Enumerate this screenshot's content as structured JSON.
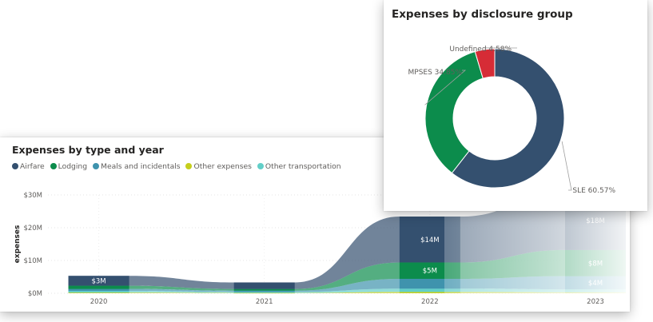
{
  "area_chart": {
    "title": "Expenses by type and year",
    "ylabel": "expenses",
    "legend": [
      {
        "label": "Airfare",
        "color": "#34506f"
      },
      {
        "label": "Lodging",
        "color": "#0c8c4c"
      },
      {
        "label": "Meals and incidentals",
        "color": "#3f93ad"
      },
      {
        "label": "Other expenses",
        "color": "#c6cf1c"
      },
      {
        "label": "Other transportation",
        "color": "#62cfc8"
      }
    ]
  },
  "donut_chart": {
    "title": "Expenses by disclosure group"
  },
  "chart_data": [
    {
      "type": "area",
      "title": "Expenses by type and year",
      "xlabel": "",
      "ylabel": "expenses",
      "categories": [
        "2020",
        "2021",
        "2022",
        "2023"
      ],
      "ylim": [
        0,
        30
      ],
      "yticks": [
        "$0M",
        "$10M",
        "$20M",
        "$30M"
      ],
      "stacked": true,
      "grid": true,
      "legend_position": "top-left",
      "series": [
        {
          "name": "Other expenses",
          "color": "#c6cf1c",
          "values": [
            0.2,
            0.1,
            0.4,
            0.3
          ]
        },
        {
          "name": "Other transportation",
          "color": "#62cfc8",
          "values": [
            0.5,
            0.3,
            1.0,
            0.9
          ]
        },
        {
          "name": "Meals and incidentals",
          "color": "#3f93ad",
          "values": [
            0.6,
            0.4,
            3.0,
            4.0
          ]
        },
        {
          "name": "Lodging",
          "color": "#0c8c4c",
          "values": [
            1.0,
            0.5,
            5.0,
            8.0
          ]
        },
        {
          "name": "Airfare",
          "color": "#34506f",
          "values": [
            3.0,
            2.0,
            14.0,
            18.0
          ]
        }
      ],
      "data_labels": [
        {
          "category": "2020",
          "series": "Airfare",
          "text": "$3M"
        },
        {
          "category": "2022",
          "series": "Airfare",
          "text": "$14M"
        },
        {
          "category": "2022",
          "series": "Lodging",
          "text": "$5M"
        },
        {
          "category": "2023",
          "series": "Airfare",
          "text": "$18M"
        },
        {
          "category": "2023",
          "series": "Lodging",
          "text": "$8M"
        },
        {
          "category": "2023",
          "series": "Meals and incidentals",
          "text": "$4M"
        }
      ]
    },
    {
      "type": "pie",
      "donut": true,
      "title": "Expenses by disclosure group",
      "slices": [
        {
          "label": "SLE",
          "value": 60.57,
          "text": "SLE 60.57%",
          "color": "#34506f"
        },
        {
          "label": "MPSES",
          "value": 34.85,
          "text": "MPSES 34.85%",
          "color": "#0c8c4c"
        },
        {
          "label": "Undefined",
          "value": 4.58,
          "text": "Undefined 4.58%",
          "color": "#d62c36"
        }
      ]
    }
  ]
}
